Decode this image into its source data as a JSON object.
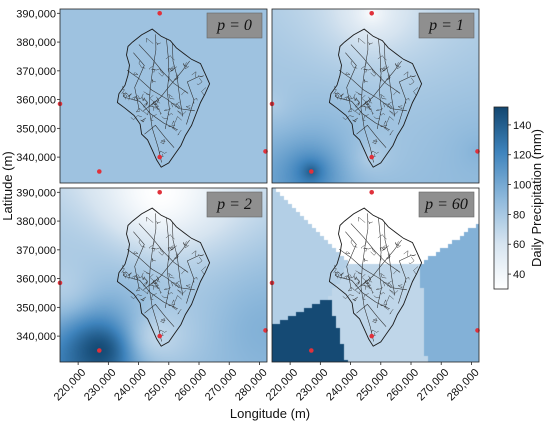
{
  "chart_data": {
    "type": "heatmap",
    "xlabel": "Longitude (m)",
    "ylabel": "Latitude (m)",
    "colorbar_label": "Daily Precipitation (mm)",
    "x_ticks": [
      220000,
      230000,
      240000,
      250000,
      260000,
      270000,
      280000
    ],
    "x_tick_labels": [
      "220,000",
      "230,000",
      "240,000",
      "250,000",
      "260,000",
      "270,000",
      "280,000"
    ],
    "y_ticks": [
      340000,
      350000,
      360000,
      370000,
      380000,
      390000
    ],
    "y_tick_labels": [
      "340,000",
      "350,000",
      "360,000",
      "370,000",
      "380,000",
      "390,000"
    ],
    "xlim": [
      214000,
      282500
    ],
    "ylim": [
      331000,
      391500
    ],
    "colorbar_ticks": [
      40,
      60,
      80,
      100,
      120,
      140
    ],
    "colorbar_tick_labels": [
      "40",
      "60",
      "80",
      "100",
      "120",
      "140"
    ],
    "colorbar_range": [
      30,
      152
    ],
    "colormap": [
      "#ffffff",
      "#d6e4f0",
      "#8db8db",
      "#3f84bd",
      "#12466f"
    ],
    "station_color": "#e0313b",
    "stations": [
      {
        "x": 227000,
        "y": 335000,
        "value": 150
      },
      {
        "x": 247000,
        "y": 340000,
        "value": 70
      },
      {
        "x": 214000,
        "y": 358500,
        "value": 75
      },
      {
        "x": 282000,
        "y": 342000,
        "value": 95
      },
      {
        "x": 247000,
        "y": 390000,
        "value": 30
      }
    ],
    "panels": [
      {
        "label": "p = 0",
        "power": 0,
        "uniform_value": 84
      },
      {
        "label": "p = 1",
        "power": 1
      },
      {
        "label": "p = 2",
        "power": 2
      },
      {
        "label": "p = 60",
        "power": 60
      }
    ]
  }
}
